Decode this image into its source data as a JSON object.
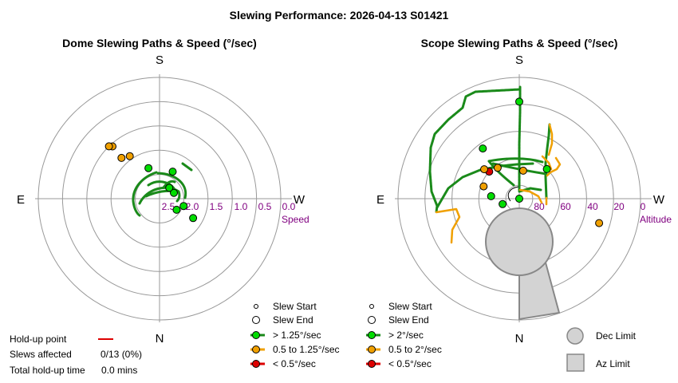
{
  "title": "Slewing Performance: 2026-04-13 S01421",
  "colors": {
    "fast": "#00dd00",
    "fast_line": "#1a8a1a",
    "medium": "#f0a000",
    "slow": "#dd0000",
    "grid": "#999999",
    "tick_label": "#800080",
    "limit_fill": "#d3d3d3",
    "limit_stroke": "#888888"
  },
  "chart_data": [
    {
      "type": "polar-scatter",
      "title": "Dome Slewing Paths & Speed (°/sec)",
      "directions": {
        "top": "S",
        "bottom": "N",
        "left": "E",
        "right": "W"
      },
      "radial_axis": {
        "label": "Speed",
        "range": [
          2.5,
          0.0
        ],
        "ticks": [
          "2.5",
          "2.0",
          "1.5",
          "1.0",
          "0.5",
          "0.0"
        ]
      },
      "legend": {
        "placement": "bottom-right",
        "items": [
          {
            "label": "Slew Start",
            "marker": "start"
          },
          {
            "label": "Slew End",
            "marker": "end"
          },
          {
            "label": "> 1.25°/sec",
            "marker": "fast"
          },
          {
            "label": "0.5 to 1.25°/sec",
            "marker": "medium"
          },
          {
            "label": "< 0.5°/sec",
            "marker": "slow"
          }
        ]
      },
      "points": [
        {
          "az": 248,
          "speed": 2.18,
          "class": "fast"
        },
        {
          "az": 222,
          "speed": 2.2,
          "class": "fast"
        },
        {
          "az": 206,
          "speed": 1.88,
          "class": "fast"
        },
        {
          "az": 160,
          "speed": 1.83,
          "class": "fast"
        },
        {
          "az": 145,
          "speed": 1.43,
          "class": "medium"
        },
        {
          "az": 137,
          "speed": 1.35,
          "class": "medium"
        },
        {
          "az": 138,
          "speed": 1.05,
          "class": "medium"
        },
        {
          "az": 136,
          "speed": 1.0,
          "class": "medium"
        },
        {
          "az": 287,
          "speed": 1.98,
          "class": "fast"
        },
        {
          "az": 300,
          "speed": 1.7,
          "class": "fast"
        },
        {
          "az": 303,
          "speed": 2.08,
          "class": "fast"
        }
      ]
    },
    {
      "type": "polar-scatter",
      "title": "Scope Slewing Paths & Speed (°/sec)",
      "directions": {
        "top": "S",
        "bottom": "N",
        "left": "E",
        "right": "W"
      },
      "radial_axis": {
        "label": "Altitude",
        "range": [
          90,
          0
        ],
        "ticks": [
          "80",
          "60",
          "40",
          "20",
          "0"
        ]
      },
      "legend": {
        "placement": "bottom-right",
        "items": [
          {
            "label": "Slew Start",
            "marker": "start"
          },
          {
            "label": "Slew End",
            "marker": "end"
          },
          {
            "label": "> 2°/sec",
            "marker": "fast"
          },
          {
            "label": "0.5 to 2°/sec",
            "marker": "medium"
          },
          {
            "label": "< 0.5°/sec",
            "marker": "slow"
          }
        ]
      },
      "limits_legend": [
        {
          "label": "Dec Limit",
          "shape": "circle"
        },
        {
          "label": "Az Limit",
          "shape": "square"
        }
      ],
      "points": [
        {
          "az": 180,
          "alt": 18,
          "class": "fast"
        },
        {
          "az": 144,
          "alt": 44,
          "class": "fast"
        },
        {
          "az": 132,
          "alt": 60,
          "class": "slow"
        },
        {
          "az": 130,
          "alt": 56,
          "class": "medium"
        },
        {
          "az": 145,
          "alt": 62,
          "class": "medium"
        },
        {
          "az": 109,
          "alt": 62,
          "class": "medium"
        },
        {
          "az": 223,
          "alt": 60,
          "class": "fast"
        },
        {
          "az": 188,
          "alt": 69,
          "class": "medium"
        },
        {
          "az": 95,
          "alt": 69,
          "class": "fast"
        },
        {
          "az": 287,
          "alt": 28,
          "class": "medium"
        },
        {
          "az": 198,
          "alt": 90,
          "class": "fast"
        },
        {
          "az": 72,
          "alt": 77,
          "class": "fast"
        }
      ]
    }
  ],
  "info": {
    "holdup_label": "Hold-up point",
    "slews_label": "Slews affected",
    "slews_value": "0/13 (0%)",
    "total_label": "Total hold-up time",
    "total_value": "0.0 mins"
  }
}
